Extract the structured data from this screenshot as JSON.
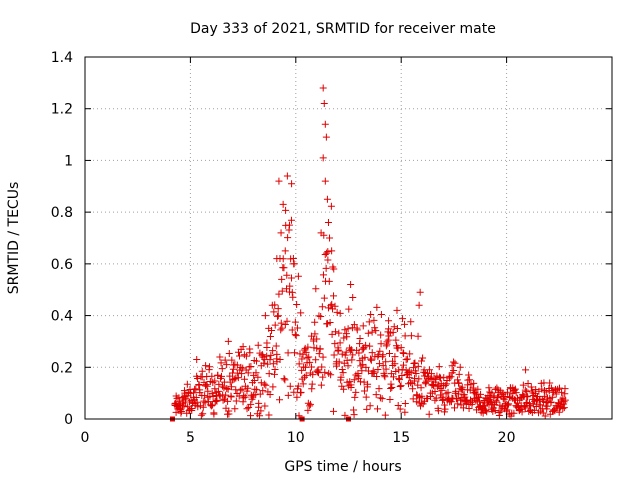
{
  "chart_data": {
    "type": "scatter",
    "title": "Day 333 of 2021, SRMTID for receiver mate",
    "xlabel": "GPS time / hours",
    "ylabel": "SRMTID / TECUs",
    "xlim": [
      0,
      25
    ],
    "ylim": [
      0,
      1.4
    ],
    "xticks": [
      0,
      5,
      10,
      15,
      20
    ],
    "yticks": [
      0,
      0.2,
      0.4,
      0.6,
      0.8,
      1,
      1.2,
      1.4
    ],
    "ytick_labels": [
      "0",
      "0.2",
      "0.4",
      "0.6",
      "0.8",
      "1",
      "1.2",
      "1.4"
    ],
    "grid": true,
    "series": [
      {
        "name": "SRMTID",
        "color": "#e00000",
        "marker": "plus",
        "profile": [
          [
            4.1,
            0.03
          ],
          [
            4.5,
            0.06
          ],
          [
            5.0,
            0.07
          ],
          [
            5.5,
            0.1
          ],
          [
            6.0,
            0.11
          ],
          [
            6.5,
            0.13
          ],
          [
            7.0,
            0.14
          ],
          [
            7.5,
            0.14
          ],
          [
            8.0,
            0.15
          ],
          [
            8.5,
            0.19
          ],
          [
            9.0,
            0.25
          ],
          [
            9.3,
            0.38
          ],
          [
            9.6,
            0.55
          ],
          [
            9.8,
            0.45
          ],
          [
            10.0,
            0.32
          ],
          [
            10.3,
            0.2
          ],
          [
            10.6,
            0.19
          ],
          [
            11.0,
            0.25
          ],
          [
            11.4,
            0.45
          ],
          [
            11.6,
            0.42
          ],
          [
            11.8,
            0.36
          ],
          [
            12.0,
            0.3
          ],
          [
            12.5,
            0.22
          ],
          [
            13.0,
            0.21
          ],
          [
            13.5,
            0.22
          ],
          [
            14.0,
            0.23
          ],
          [
            14.5,
            0.24
          ],
          [
            15.0,
            0.21
          ],
          [
            15.5,
            0.17
          ],
          [
            16.0,
            0.13
          ],
          [
            16.5,
            0.1
          ],
          [
            17.0,
            0.1
          ],
          [
            17.5,
            0.11
          ],
          [
            18.0,
            0.09
          ],
          [
            18.5,
            0.07
          ],
          [
            19.0,
            0.06
          ],
          [
            19.5,
            0.07
          ],
          [
            20.0,
            0.07
          ],
          [
            20.5,
            0.07
          ],
          [
            21.0,
            0.07
          ],
          [
            21.5,
            0.07
          ],
          [
            22.0,
            0.07
          ],
          [
            22.8,
            0.07
          ]
        ],
        "peaks": [
          [
            9.2,
            0.92
          ],
          [
            9.4,
            0.83
          ],
          [
            9.6,
            0.94
          ],
          [
            9.8,
            0.91
          ],
          [
            9.7,
            0.75
          ],
          [
            9.3,
            0.72
          ],
          [
            9.5,
            0.65
          ],
          [
            9.9,
            0.6
          ],
          [
            9.1,
            0.62
          ],
          [
            11.3,
            1.28
          ],
          [
            11.35,
            1.22
          ],
          [
            11.4,
            1.14
          ],
          [
            11.45,
            1.09
          ],
          [
            11.3,
            1.01
          ],
          [
            11.4,
            0.92
          ],
          [
            11.5,
            0.85
          ],
          [
            11.55,
            0.76
          ],
          [
            11.6,
            0.7
          ],
          [
            11.7,
            0.65
          ],
          [
            11.8,
            0.58
          ],
          [
            11.2,
            0.72
          ],
          [
            12.6,
            0.52
          ],
          [
            12.7,
            0.47
          ],
          [
            14.4,
            0.38
          ],
          [
            15.9,
            0.49
          ],
          [
            15.85,
            0.44
          ],
          [
            15.8,
            0.32
          ],
          [
            6.8,
            0.3
          ],
          [
            5.3,
            0.23
          ],
          [
            7.5,
            0.28
          ],
          [
            13.2,
            0.36
          ],
          [
            14.8,
            0.42
          ],
          [
            12.4,
            0.33
          ],
          [
            20.9,
            0.19
          ],
          [
            17.8,
            0.2
          ],
          [
            18.2,
            0.17
          ]
        ],
        "zero_points": [
          4.15,
          10.3,
          12.5
        ]
      }
    ]
  }
}
